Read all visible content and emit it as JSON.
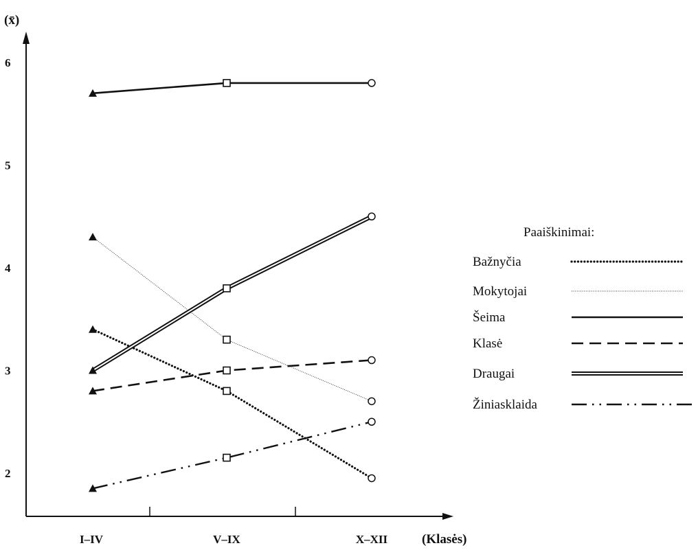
{
  "chart_data": {
    "type": "line",
    "ylabel": "(x̄)",
    "xlabel": "(Klasės)",
    "categories": [
      "I–IV",
      "V–IX",
      "X–XII"
    ],
    "y_ticks": [
      2,
      3,
      4,
      5,
      6
    ],
    "ylim": [
      1.85,
      6.4
    ],
    "grid": false,
    "legend_placement": "right",
    "legend_title": "Paaiškinimai:",
    "markers": [
      "triangle",
      "square",
      "circle"
    ],
    "series": [
      {
        "name": "Bažnyčia",
        "style": "dotted-heavy",
        "values": [
          3.4,
          2.8,
          1.95
        ]
      },
      {
        "name": "Mokytojai",
        "style": "dotted-fine",
        "values": [
          4.3,
          3.3,
          2.7
        ]
      },
      {
        "name": "Šeima",
        "style": "solid",
        "values": [
          5.7,
          5.8,
          5.8
        ]
      },
      {
        "name": "Klasė",
        "style": "dashed",
        "values": [
          2.8,
          3.0,
          3.1
        ]
      },
      {
        "name": "Draugai",
        "style": "double",
        "values": [
          3.0,
          3.8,
          4.5
        ]
      },
      {
        "name": "Žiniasklaida",
        "style": "dash-dot-dot",
        "values": [
          1.85,
          2.15,
          2.5
        ]
      }
    ]
  }
}
